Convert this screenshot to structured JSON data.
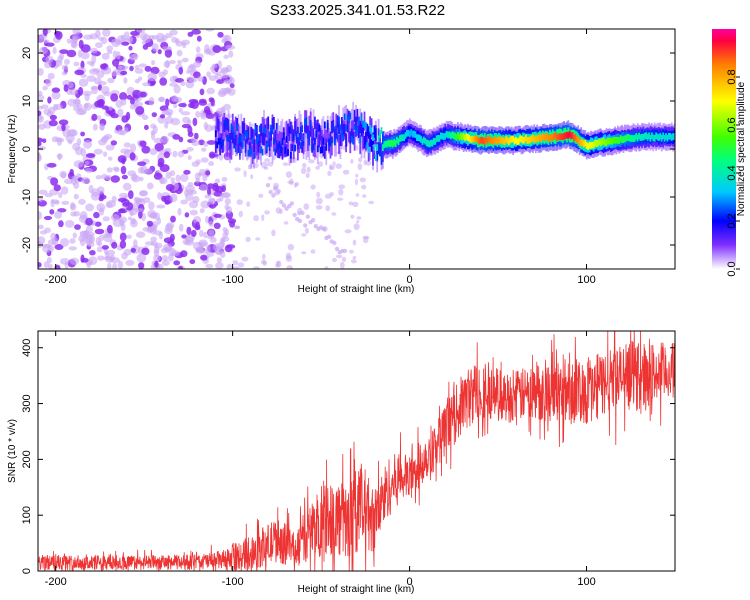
{
  "title": "S233.2025.341.01.53.R22",
  "colors": {
    "signal": "#ee3333",
    "noise": "#8c2cf0",
    "noise_light": "#c9a6f5"
  },
  "chart_data": [
    {
      "type": "heatmap",
      "xlabel": "Height of straight line (km)",
      "ylabel": "Frequency (Hz)",
      "xlim": [
        -210,
        150
      ],
      "ylim": [
        -25,
        25
      ],
      "xticks": [
        -200,
        -100,
        0,
        100
      ],
      "yticks": [
        20,
        10,
        0,
        -10,
        -20
      ],
      "colorbar": {
        "label": "Normalized spectral amplitude",
        "range": [
          0,
          1
        ],
        "ticks": [
          0.0,
          0.2,
          0.4,
          0.6,
          0.8
        ]
      },
      "noise_region_x": [
        -210,
        -100
      ],
      "signal_ridge": [
        {
          "x": -110,
          "f": 2.5,
          "amp": 0.2
        },
        {
          "x": -100,
          "f": 2.8,
          "amp": 0.25
        },
        {
          "x": -90,
          "f": 1.0,
          "amp": 0.25
        },
        {
          "x": -80,
          "f": 3.0,
          "amp": 0.25
        },
        {
          "x": -70,
          "f": 1.0,
          "amp": 0.2
        },
        {
          "x": -60,
          "f": 3.5,
          "amp": 0.25
        },
        {
          "x": -50,
          "f": 2.0,
          "amp": 0.2
        },
        {
          "x": -40,
          "f": 3.5,
          "amp": 0.25
        },
        {
          "x": -30,
          "f": 4.5,
          "amp": 0.25
        },
        {
          "x": -20,
          "f": 0.8,
          "amp": 0.35
        },
        {
          "x": -10,
          "f": 1.0,
          "amp": 0.5
        },
        {
          "x": 0,
          "f": 3.5,
          "amp": 0.3
        },
        {
          "x": 10,
          "f": 1.0,
          "amp": 0.4
        },
        {
          "x": 20,
          "f": 3.0,
          "amp": 0.35
        },
        {
          "x": 40,
          "f": 1.8,
          "amp": 0.9
        },
        {
          "x": 60,
          "f": 1.8,
          "amp": 0.7
        },
        {
          "x": 80,
          "f": 2.5,
          "amp": 0.85
        },
        {
          "x": 90,
          "f": 3.0,
          "amp": 0.95
        },
        {
          "x": 100,
          "f": 0.7,
          "amp": 0.7
        },
        {
          "x": 110,
          "f": 1.5,
          "amp": 0.6
        },
        {
          "x": 130,
          "f": 2.5,
          "amp": 0.4
        },
        {
          "x": 150,
          "f": 2.5,
          "amp": 0.35
        }
      ]
    },
    {
      "type": "line",
      "xlabel": "Height of straight line (km)",
      "ylabel": "SNR (10 * v/v)",
      "xlim": [
        -210,
        150
      ],
      "ylim": [
        0,
        430
      ],
      "xticks": [
        -200,
        -100,
        0,
        100
      ],
      "yticks": [
        0,
        100,
        200,
        300,
        400
      ],
      "series": [
        {
          "name": "SNR",
          "x": [
            -210,
            -180,
            -150,
            -120,
            -105,
            -95,
            -85,
            -75,
            -65,
            -55,
            -45,
            -35,
            -28,
            -20,
            -12,
            -5,
            0,
            10,
            20,
            30,
            40,
            55,
            70,
            85,
            100,
            115,
            130,
            150
          ],
          "mean": [
            15,
            15,
            15,
            16,
            20,
            28,
            40,
            55,
            40,
            75,
            100,
            85,
            120,
            90,
            150,
            170,
            165,
            210,
            250,
            300,
            330,
            310,
            320,
            325,
            320,
            345,
            350,
            360
          ],
          "spread": [
            14,
            14,
            13,
            14,
            18,
            28,
            35,
            40,
            35,
            55,
            70,
            70,
            80,
            60,
            55,
            45,
            40,
            45,
            45,
            55,
            55,
            45,
            50,
            60,
            60,
            60,
            60,
            50
          ]
        }
      ]
    }
  ]
}
